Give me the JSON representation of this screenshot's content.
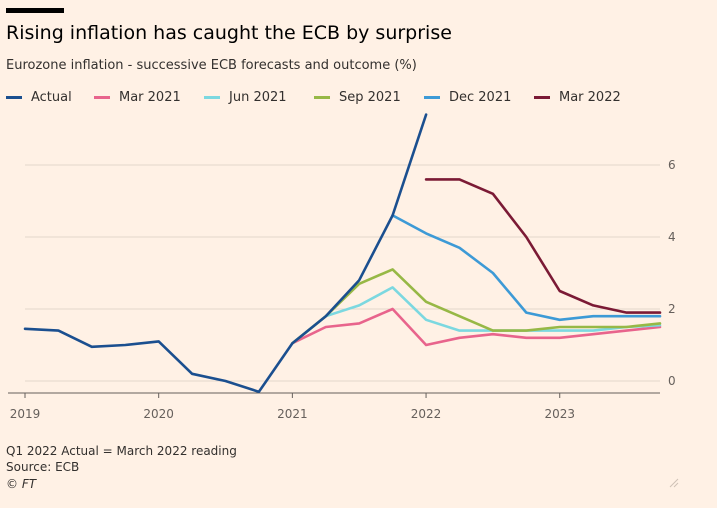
{
  "title": "Rising inflation has caught the ECB by surprise",
  "subtitle": "Eurozone inflation - successive ECB forecasts and outcome (%)",
  "note": "Q1 2022 Actual = March 2022 reading",
  "source": "Source: ECB",
  "credit": "© FT",
  "chart_data": {
    "type": "line",
    "title": "Rising inflation has caught the ECB by surprise",
    "subtitle": "Eurozone inflation - successive ECB forecasts and outcome (%)",
    "xlabel": "",
    "ylabel": "%",
    "xlim": [
      2019.0,
      2023.75
    ],
    "ylim": [
      -0.5,
      7.5
    ],
    "xticks": [
      2019,
      2020,
      2021,
      2022,
      2023
    ],
    "xtick_labels": [
      "2019",
      "2020",
      "2021",
      "2022",
      "2023"
    ],
    "yticks": [
      0,
      2,
      4,
      6
    ],
    "ytick_labels": [
      "0",
      "2",
      "4",
      "6"
    ],
    "grid": "horizontal",
    "legend_position": "top",
    "series": [
      {
        "name": "Actual",
        "color": "#1b4f8f",
        "x": [
          2019.0,
          2019.25,
          2019.5,
          2019.75,
          2020.0,
          2020.25,
          2020.5,
          2020.75,
          2021.0,
          2021.25,
          2021.5,
          2021.75,
          2022.0
        ],
        "y": [
          1.45,
          1.4,
          0.95,
          1.0,
          1.1,
          0.2,
          0.0,
          -0.3,
          1.05,
          1.8,
          2.8,
          4.6,
          7.4
        ]
      },
      {
        "name": "Mar 2021",
        "color": "#e8648c",
        "x": [
          2021.0,
          2021.25,
          2021.5,
          2021.75,
          2022.0,
          2022.25,
          2022.5,
          2022.75,
          2023.0,
          2023.25,
          2023.5,
          2023.75
        ],
        "y": [
          1.05,
          1.5,
          1.6,
          2.0,
          1.0,
          1.2,
          1.3,
          1.2,
          1.2,
          1.3,
          1.4,
          1.5
        ]
      },
      {
        "name": "Jun 2021",
        "color": "#7cd8e0",
        "x": [
          2021.0,
          2021.25,
          2021.5,
          2021.75,
          2022.0,
          2022.25,
          2022.5,
          2022.75,
          2023.0,
          2023.25,
          2023.5,
          2023.75
        ],
        "y": [
          1.05,
          1.8,
          2.1,
          2.6,
          1.7,
          1.4,
          1.4,
          1.4,
          1.4,
          1.4,
          1.5,
          1.55
        ]
      },
      {
        "name": "Sep 2021",
        "color": "#97b846",
        "x": [
          2021.0,
          2021.25,
          2021.5,
          2021.75,
          2022.0,
          2022.25,
          2022.5,
          2022.75,
          2023.0,
          2023.25,
          2023.5,
          2023.75
        ],
        "y": [
          1.05,
          1.8,
          2.7,
          3.1,
          2.2,
          1.8,
          1.4,
          1.4,
          1.5,
          1.5,
          1.5,
          1.6
        ]
      },
      {
        "name": "Dec 2021",
        "color": "#3d9ad6",
        "x": [
          2021.75,
          2022.0,
          2022.25,
          2022.5,
          2022.75,
          2023.0,
          2023.25,
          2023.5,
          2023.75
        ],
        "y": [
          4.6,
          4.1,
          3.7,
          3.0,
          1.9,
          1.7,
          1.8,
          1.8,
          1.8
        ]
      },
      {
        "name": "Mar 2022",
        "color": "#7b1a35",
        "x": [
          2022.0,
          2022.25,
          2022.5,
          2022.75,
          2023.0,
          2023.25,
          2023.5,
          2023.75
        ],
        "y": [
          5.6,
          5.6,
          5.2,
          4.0,
          2.5,
          2.1,
          1.9,
          1.9
        ]
      }
    ]
  },
  "colors": {
    "background": "#fff1e5",
    "gridline": "#e3d6cb",
    "axis": "#66605c"
  }
}
